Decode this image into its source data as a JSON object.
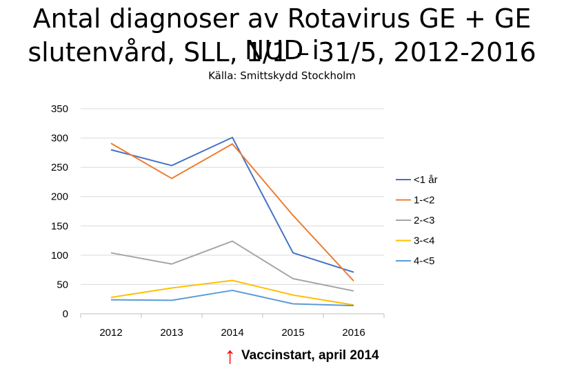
{
  "title_line1": "Antal diagnoser av Rotavirus GE + GE NUD i",
  "title_line2": "slutenvård, SLL, 1/1 – 31/5, 2012-2016",
  "source": "Källa: Smittskydd Stockholm",
  "annotation": {
    "arrow": "↑",
    "text": "Vaccinstart, april 2014",
    "color": "#ff0000"
  },
  "chart_data": {
    "type": "line",
    "title": "",
    "xlabel": "",
    "ylabel": "",
    "categories": [
      "2012",
      "2013",
      "2014",
      "2015",
      "2016"
    ],
    "ylim": [
      0,
      350
    ],
    "yticks": [
      0,
      50,
      100,
      150,
      200,
      250,
      300,
      350
    ],
    "grid": true,
    "legend_position": "right",
    "series": [
      {
        "name": "<1 år",
        "color": "#4472c4",
        "values": [
          280,
          253,
          301,
          104,
          71
        ]
      },
      {
        "name": "1-<2",
        "color": "#ed7d31",
        "values": [
          291,
          231,
          290,
          168,
          56
        ]
      },
      {
        "name": "2-<3",
        "color": "#a5a5a5",
        "values": [
          104,
          85,
          124,
          60,
          39
        ]
      },
      {
        "name": "3-<4",
        "color": "#ffc000",
        "values": [
          28,
          44,
          57,
          32,
          15
        ]
      },
      {
        "name": "4-<5",
        "color": "#5b9bd5",
        "values": [
          24,
          23,
          40,
          17,
          14
        ]
      }
    ]
  }
}
